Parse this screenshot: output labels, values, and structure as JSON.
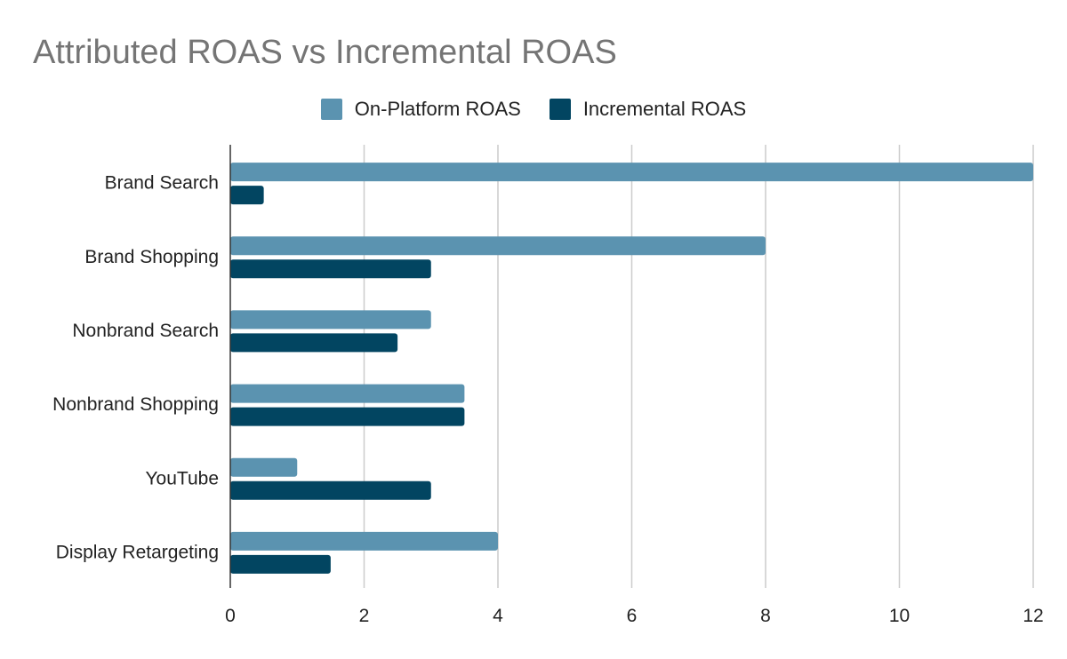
{
  "chart_data": {
    "type": "bar",
    "orientation": "horizontal",
    "title": "Attributed ROAS vs Incremental ROAS",
    "categories": [
      "Brand Search",
      "Brand Shopping",
      "Nonbrand Search",
      "Nonbrand Shopping",
      "YouTube",
      "Display Retargeting"
    ],
    "series": [
      {
        "name": "On-Platform ROAS",
        "color": "#5b93b0",
        "values": [
          12,
          8,
          3,
          3.5,
          1,
          4
        ]
      },
      {
        "name": "Incremental ROAS",
        "color": "#024561",
        "values": [
          0.5,
          3,
          2.5,
          3.5,
          3,
          1.5
        ]
      }
    ],
    "xlim": [
      0,
      12
    ],
    "xticks": [
      0,
      2,
      4,
      6,
      8,
      10,
      12
    ],
    "xlabel": "",
    "ylabel": "",
    "grid": "vertical",
    "legend_position": "top-center"
  }
}
